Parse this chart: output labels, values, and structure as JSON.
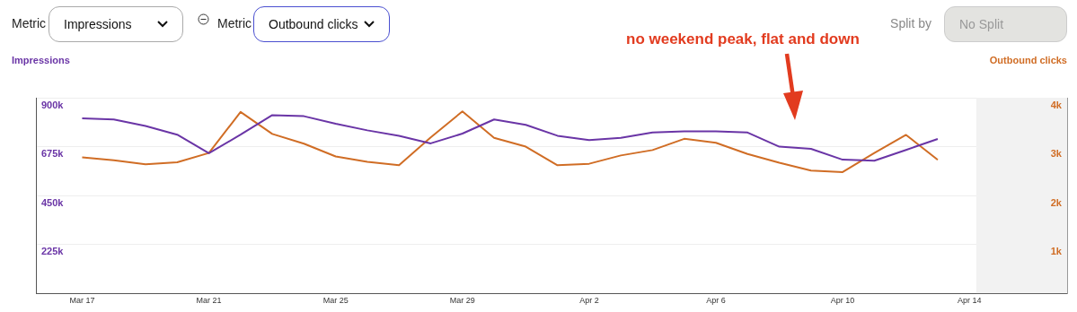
{
  "chart_data": {
    "type": "line",
    "ylabel": "Impressions",
    "y2label": "Outbound clicks",
    "annotations": [
      "no weekend peak, flat and down",
      "Metric",
      "Impressions",
      "Metric",
      "Outbound clicks",
      "Split by",
      "No Split"
    ],
    "x": [
      "--03-17",
      "--03-18",
      "--03-19",
      "--03-20",
      "--03-21",
      "--03-22",
      "--03-23",
      "--03-24",
      "--03-25",
      "--03-26",
      "--03-27",
      "--03-28",
      "--03-29",
      "--03-30",
      "--03-31",
      "--04-01",
      "--04-02",
      "--04-03",
      "--04-04",
      "--04-05",
      "--04-06",
      "--04-07",
      "--04-08",
      "--04-09",
      "--04-10",
      "--04-11",
      "--04-12",
      "--04-13"
    ],
    "series": [
      {
        "color": "#6a35a6",
        "axis": "y",
        "values": [
          805000,
          800000,
          770000,
          730000,
          645000,
          730000,
          820000,
          815000,
          780000,
          750000,
          725000,
          690000,
          735000,
          800000,
          775000,
          725000,
          705000,
          715000,
          740000,
          745000,
          745000,
          740000,
          675000,
          665000,
          615000,
          610000,
          660000,
          710000
        ]
      },
      {
        "color": "#d06d25",
        "axis": "y2",
        "values": [
          2780,
          2720,
          2640,
          2680,
          2870,
          3710,
          3260,
          3060,
          2800,
          2690,
          2620,
          3190,
          3720,
          3180,
          3000,
          2620,
          2650,
          2820,
          2930,
          3160,
          3080,
          2850,
          2670,
          2510,
          2480,
          2870,
          3240,
          2730
        ]
      }
    ],
    "xlim": [
      "--03-15T13:00",
      "--04-17T02:00"
    ],
    "xticks": [
      {
        "value": "--03-17",
        "label": "Mar 17"
      },
      {
        "value": "--03-21",
        "label": "Mar 21"
      },
      {
        "value": "--03-25",
        "label": "Mar 25"
      },
      {
        "value": "--03-29",
        "label": "Mar 29"
      },
      {
        "value": "--04-02",
        "label": "Apr 2"
      },
      {
        "value": "--04-06",
        "label": "Apr 6"
      },
      {
        "value": "--04-10",
        "label": "Apr 10"
      },
      {
        "value": "--04-14",
        "label": "Apr 14"
      }
    ],
    "ylim": [
      0,
      900000
    ],
    "yticks": [
      {
        "value": 225000,
        "label": "225k"
      },
      {
        "value": 450000,
        "label": "450k"
      },
      {
        "value": 675000,
        "label": "675k"
      },
      {
        "value": 900000,
        "label": "900k"
      }
    ],
    "y2lim": [
      0,
      4000
    ],
    "y2ticks": [
      {
        "value": 1000,
        "label": "1k"
      },
      {
        "value": 2000,
        "label": "2k"
      },
      {
        "value": 3000,
        "label": "3k"
      },
      {
        "value": 4000,
        "label": "4k"
      }
    ],
    "bands": [
      {
        "axis": "x",
        "from": "--04-14T05:00",
        "to": "--04-17T02:00",
        "color": "#f2f2f2"
      }
    ],
    "grid": "y",
    "legend": false,
    "marker": "none",
    "line_style": "solid"
  }
}
